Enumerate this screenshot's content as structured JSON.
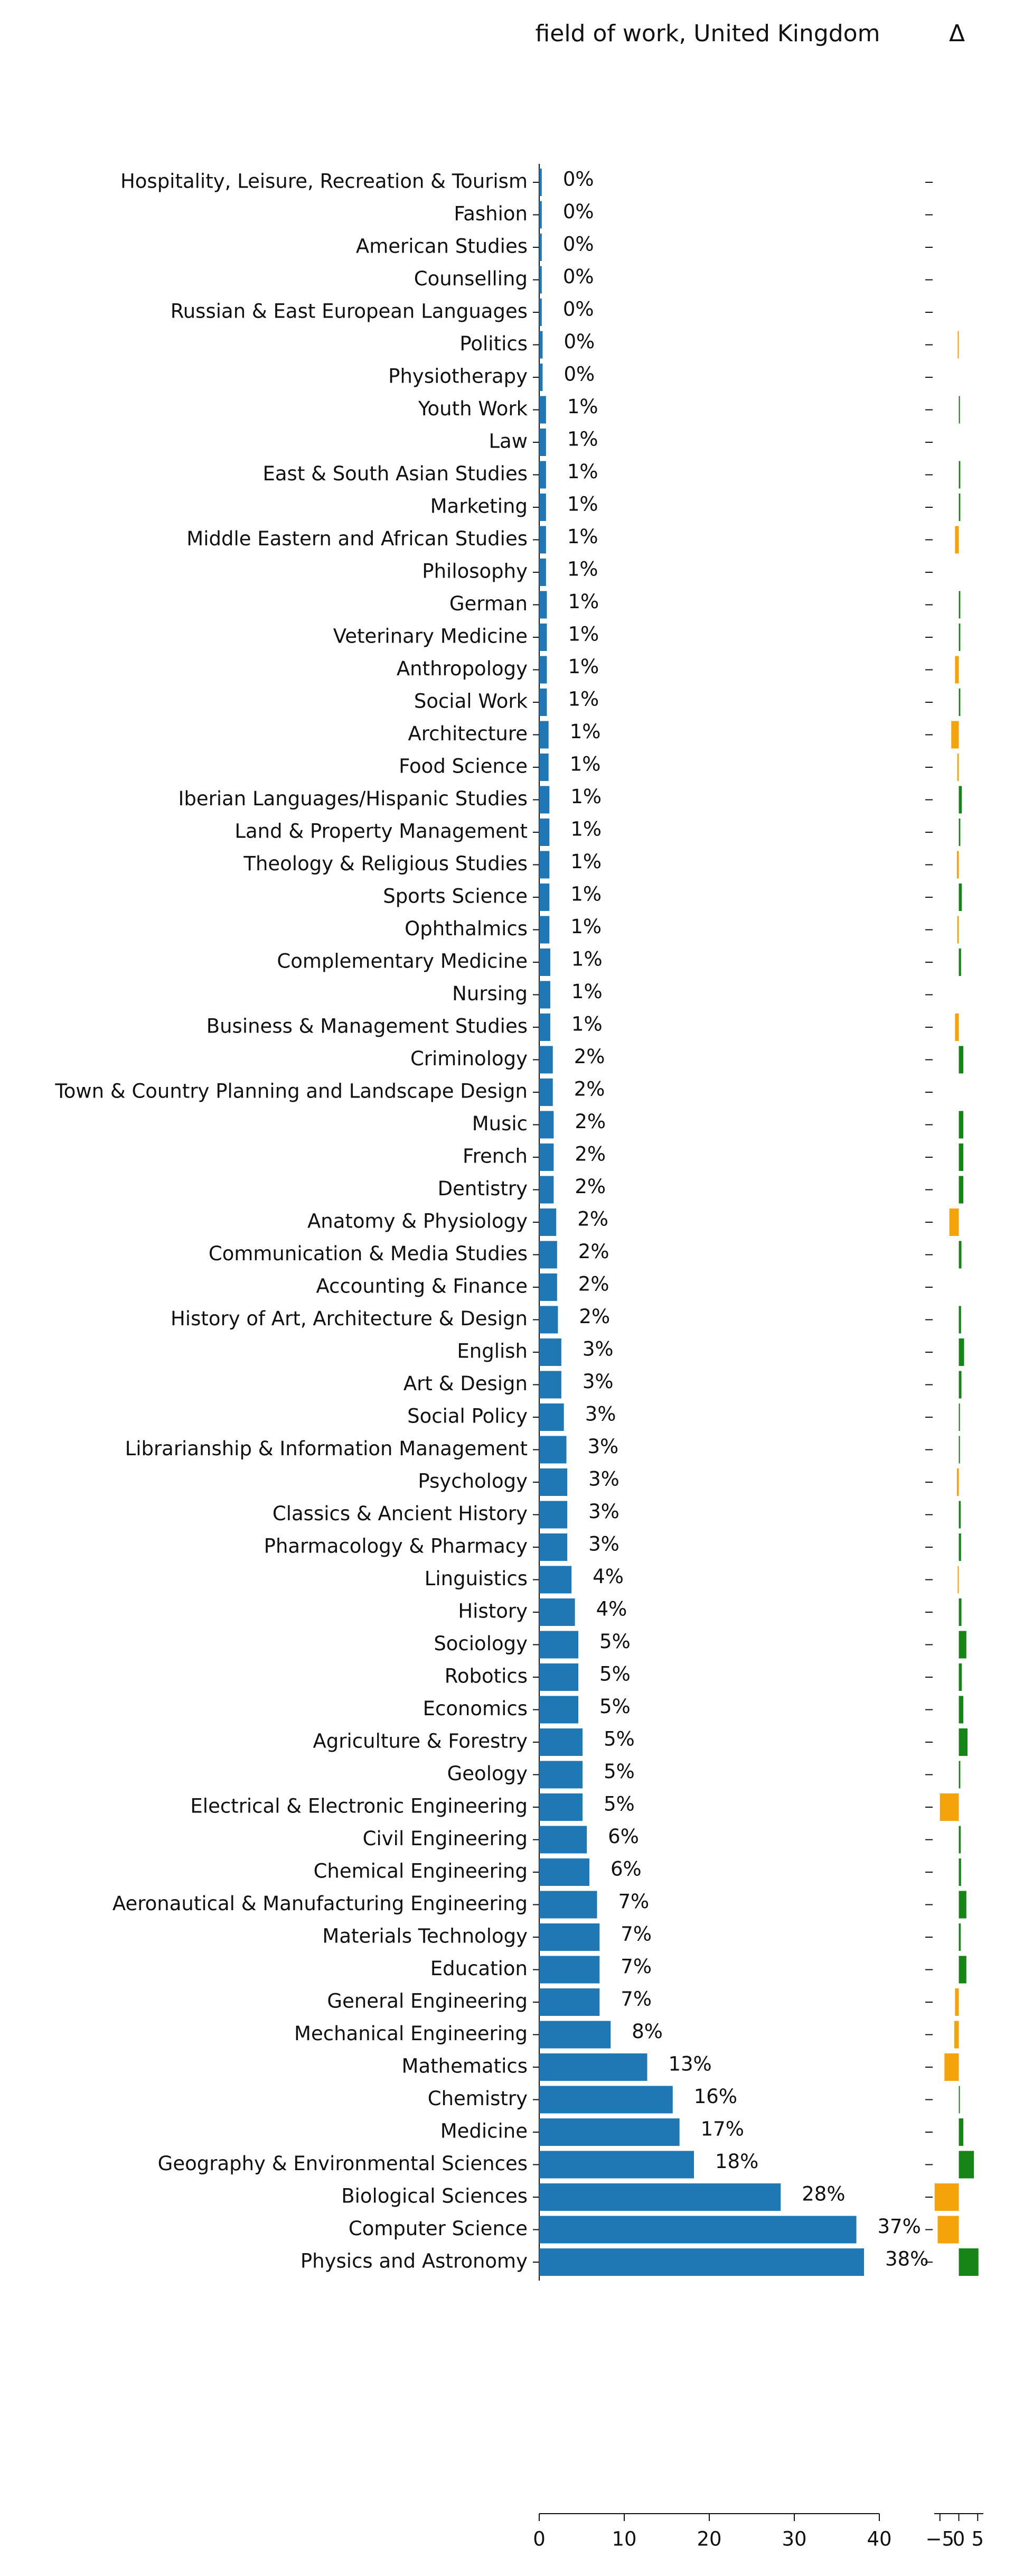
{
  "chart_data": [
    {
      "type": "bar",
      "title": "field of work, United Kingdom",
      "categories": [
        "Hospitality, Leisure, Recreation & Tourism",
        "Fashion",
        "American Studies",
        "Counselling",
        "Russian & East European Languages",
        "Politics",
        "Physiotherapy",
        "Youth Work",
        "Law",
        "East & South Asian Studies",
        "Marketing",
        "Middle Eastern and African Studies",
        "Philosophy",
        "German",
        "Veterinary Medicine",
        "Anthropology",
        "Social Work",
        "Architecture",
        "Food Science",
        "Iberian Languages/Hispanic Studies",
        "Land & Property Management",
        "Theology & Religious Studies",
        "Sports Science",
        "Ophthalmics",
        "Complementary Medicine",
        "Nursing",
        "Business & Management Studies",
        "Criminology",
        "Town & Country Planning and Landscape Design",
        "Music",
        "French",
        "Dentistry",
        "Anatomy & Physiology",
        "Communication & Media Studies",
        "Accounting & Finance",
        "History of Art, Architecture & Design",
        "English",
        "Art & Design",
        "Social Policy",
        "Librarianship & Information Management",
        "Psychology",
        "Classics & Ancient History",
        "Pharmacology & Pharmacy",
        "Linguistics",
        "History",
        "Sociology",
        "Robotics",
        "Economics",
        "Agriculture & Forestry",
        "Geology",
        "Electrical & Electronic Engineering",
        "Civil Engineering",
        "Chemical Engineering",
        "Aeronautical & Manufacturing Engineering",
        "Materials Technology",
        "Education",
        "General Engineering",
        "Mechanical Engineering",
        "Mathematics",
        "Chemistry",
        "Medicine",
        "Geography & Environmental Sciences",
        "Biological Sciences",
        "Computer Science",
        "Physics and Astronomy"
      ],
      "values": [
        0.3,
        0.3,
        0.3,
        0.3,
        0.3,
        0.4,
        0.4,
        0.8,
        0.8,
        0.8,
        0.8,
        0.8,
        0.8,
        0.9,
        0.9,
        0.9,
        0.9,
        1.1,
        1.1,
        1.2,
        1.2,
        1.2,
        1.2,
        1.2,
        1.3,
        1.3,
        1.3,
        1.6,
        1.6,
        1.7,
        1.7,
        1.7,
        2.0,
        2.1,
        2.1,
        2.2,
        2.6,
        2.6,
        2.9,
        3.2,
        3.3,
        3.3,
        3.3,
        3.8,
        4.2,
        4.6,
        4.6,
        4.6,
        5.1,
        5.1,
        5.1,
        5.6,
        5.9,
        6.8,
        7.1,
        7.1,
        7.1,
        8.4,
        12.7,
        15.7,
        16.5,
        18.2,
        28.4,
        37.3,
        38.2
      ],
      "value_labels": [
        "0%",
        "0%",
        "0%",
        "0%",
        "0%",
        "0%",
        "0%",
        "1%",
        "1%",
        "1%",
        "1%",
        "1%",
        "1%",
        "1%",
        "1%",
        "1%",
        "1%",
        "1%",
        "1%",
        "1%",
        "1%",
        "1%",
        "1%",
        "1%",
        "1%",
        "1%",
        "1%",
        "2%",
        "2%",
        "2%",
        "2%",
        "2%",
        "2%",
        "2%",
        "2%",
        "2%",
        "3%",
        "3%",
        "3%",
        "3%",
        "3%",
        "3%",
        "3%",
        "4%",
        "4%",
        "5%",
        "5%",
        "5%",
        "5%",
        "5%",
        "5%",
        "6%",
        "6%",
        "7%",
        "7%",
        "7%",
        "7%",
        "8%",
        "13%",
        "16%",
        "17%",
        "18%",
        "28%",
        "37%",
        "38%"
      ],
      "color": "#1f77b4",
      "xlim": [
        0,
        40
      ],
      "xticks": [
        0,
        10,
        20,
        30,
        40
      ]
    },
    {
      "type": "diverging-bar",
      "title": "Δ",
      "values": [
        null,
        null,
        null,
        null,
        null,
        -0.3,
        null,
        0.3,
        null,
        0.4,
        0.4,
        -1.0,
        null,
        0.4,
        0.4,
        -1.0,
        0.4,
        -2.0,
        -0.4,
        0.8,
        0.4,
        -0.5,
        0.8,
        -0.4,
        0.6,
        null,
        -1.0,
        1.2,
        null,
        1.2,
        1.2,
        1.2,
        -2.5,
        0.7,
        null,
        0.6,
        1.4,
        0.7,
        0.3,
        0.3,
        -0.5,
        0.5,
        0.6,
        -0.3,
        0.7,
        2.0,
        0.8,
        1.2,
        2.3,
        0.4,
        -5.0,
        0.5,
        0.6,
        2.0,
        0.5,
        2.0,
        -1.0,
        -1.2,
        -3.8,
        0.1,
        1.2,
        4.0,
        -6.4,
        -5.6,
        5.2
      ],
      "positive_color": "#168416",
      "negative_color": "#f5a30a",
      "xlim": [
        -6.5,
        6.5
      ],
      "xticks": [
        {
          "value": -5,
          "label": "−5"
        },
        0,
        5
      ]
    }
  ]
}
